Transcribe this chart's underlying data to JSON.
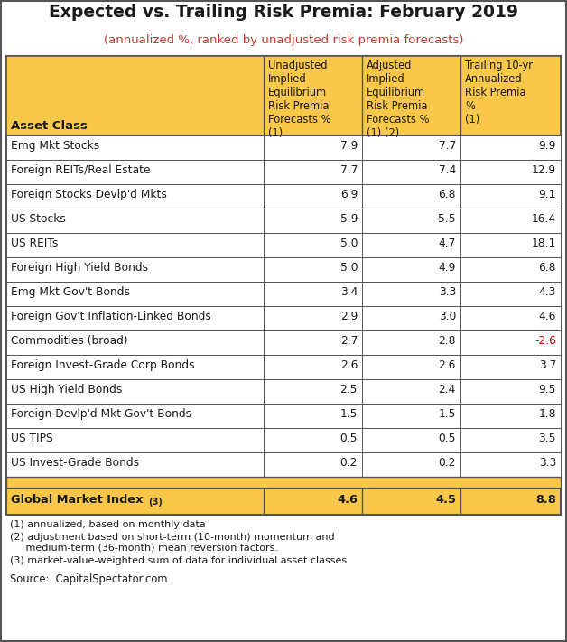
{
  "title": "Expected vs. Trailing Risk Premia: February 2019",
  "subtitle": "(annualized %, ranked by unadjusted risk premia forecasts)",
  "col_headers": [
    "Unadjusted\nImplied\nEquilibrium\nRisk Premia\nForecasts %\n(1)",
    "Adjusted\nImplied\nEquilibrium\nRisk Premia\nForecasts %\n(1) (2)",
    "Trailing 10-yr\nAnnualized\nRisk Premia\n%\n(1)"
  ],
  "row_label_header": "Asset Class",
  "rows": [
    {
      "label": "Emg Mkt Stocks",
      "v1": "7.9",
      "v2": "7.7",
      "v3": "9.9",
      "v3_color": "#1a1a1a"
    },
    {
      "label": "Foreign REITs/Real Estate",
      "v1": "7.7",
      "v2": "7.4",
      "v3": "12.9",
      "v3_color": "#1a1a1a"
    },
    {
      "label": "Foreign Stocks Devlp'd Mkts",
      "v1": "6.9",
      "v2": "6.8",
      "v3": "9.1",
      "v3_color": "#1a1a1a"
    },
    {
      "label": "US Stocks",
      "v1": "5.9",
      "v2": "5.5",
      "v3": "16.4",
      "v3_color": "#1a1a1a"
    },
    {
      "label": "US REITs",
      "v1": "5.0",
      "v2": "4.7",
      "v3": "18.1",
      "v3_color": "#1a1a1a"
    },
    {
      "label": "Foreign High Yield Bonds",
      "v1": "5.0",
      "v2": "4.9",
      "v3": "6.8",
      "v3_color": "#1a1a1a"
    },
    {
      "label": "Emg Mkt Gov't Bonds",
      "v1": "3.4",
      "v2": "3.3",
      "v3": "4.3",
      "v3_color": "#1a1a1a"
    },
    {
      "label": "Foreign Gov't Inflation-Linked Bonds",
      "v1": "2.9",
      "v2": "3.0",
      "v3": "4.6",
      "v3_color": "#1a1a1a"
    },
    {
      "label": "Commodities (broad)",
      "v1": "2.7",
      "v2": "2.8",
      "v3": "-2.6",
      "v3_color": "#cc0000"
    },
    {
      "label": "Foreign Invest-Grade Corp Bonds",
      "v1": "2.6",
      "v2": "2.6",
      "v3": "3.7",
      "v3_color": "#1a1a1a"
    },
    {
      "label": "US High Yield Bonds",
      "v1": "2.5",
      "v2": "2.4",
      "v3": "9.5",
      "v3_color": "#1a1a1a"
    },
    {
      "label": "Foreign Devlp'd Mkt Gov't Bonds",
      "v1": "1.5",
      "v2": "1.5",
      "v3": "1.8",
      "v3_color": "#1a1a1a"
    },
    {
      "label": "US TIPS",
      "v1": "0.5",
      "v2": "0.5",
      "v3": "3.5",
      "v3_color": "#1a1a1a"
    },
    {
      "label": "US Invest-Grade Bonds",
      "v1": "0.2",
      "v2": "0.2",
      "v3": "3.3",
      "v3_color": "#1a1a1a"
    }
  ],
  "global_row": {
    "label": "Global Market Index",
    "label_super": " (3)",
    "v1": "4.6",
    "v2": "4.5",
    "v3": "8.8"
  },
  "footnotes": [
    "(1) annualized, based on monthly data",
    "(2) adjustment based on short-term (10-month) momentum and\n     medium-term (36-month) mean reversion factors.",
    "(3) market-value-weighted sum of data for individual asset classes"
  ],
  "source": "Source:  CapitalSpectator.com",
  "header_bg": "#F9C84A",
  "global_bg": "#F9C84A",
  "separator_bg": "#F9C84A",
  "title_color": "#1a1a1a",
  "subtitle_color": "#C0392B",
  "border_color": "#555555",
  "text_color": "#1a1a1a",
  "figw": 6.28,
  "figh": 7.11,
  "dpi": 100
}
